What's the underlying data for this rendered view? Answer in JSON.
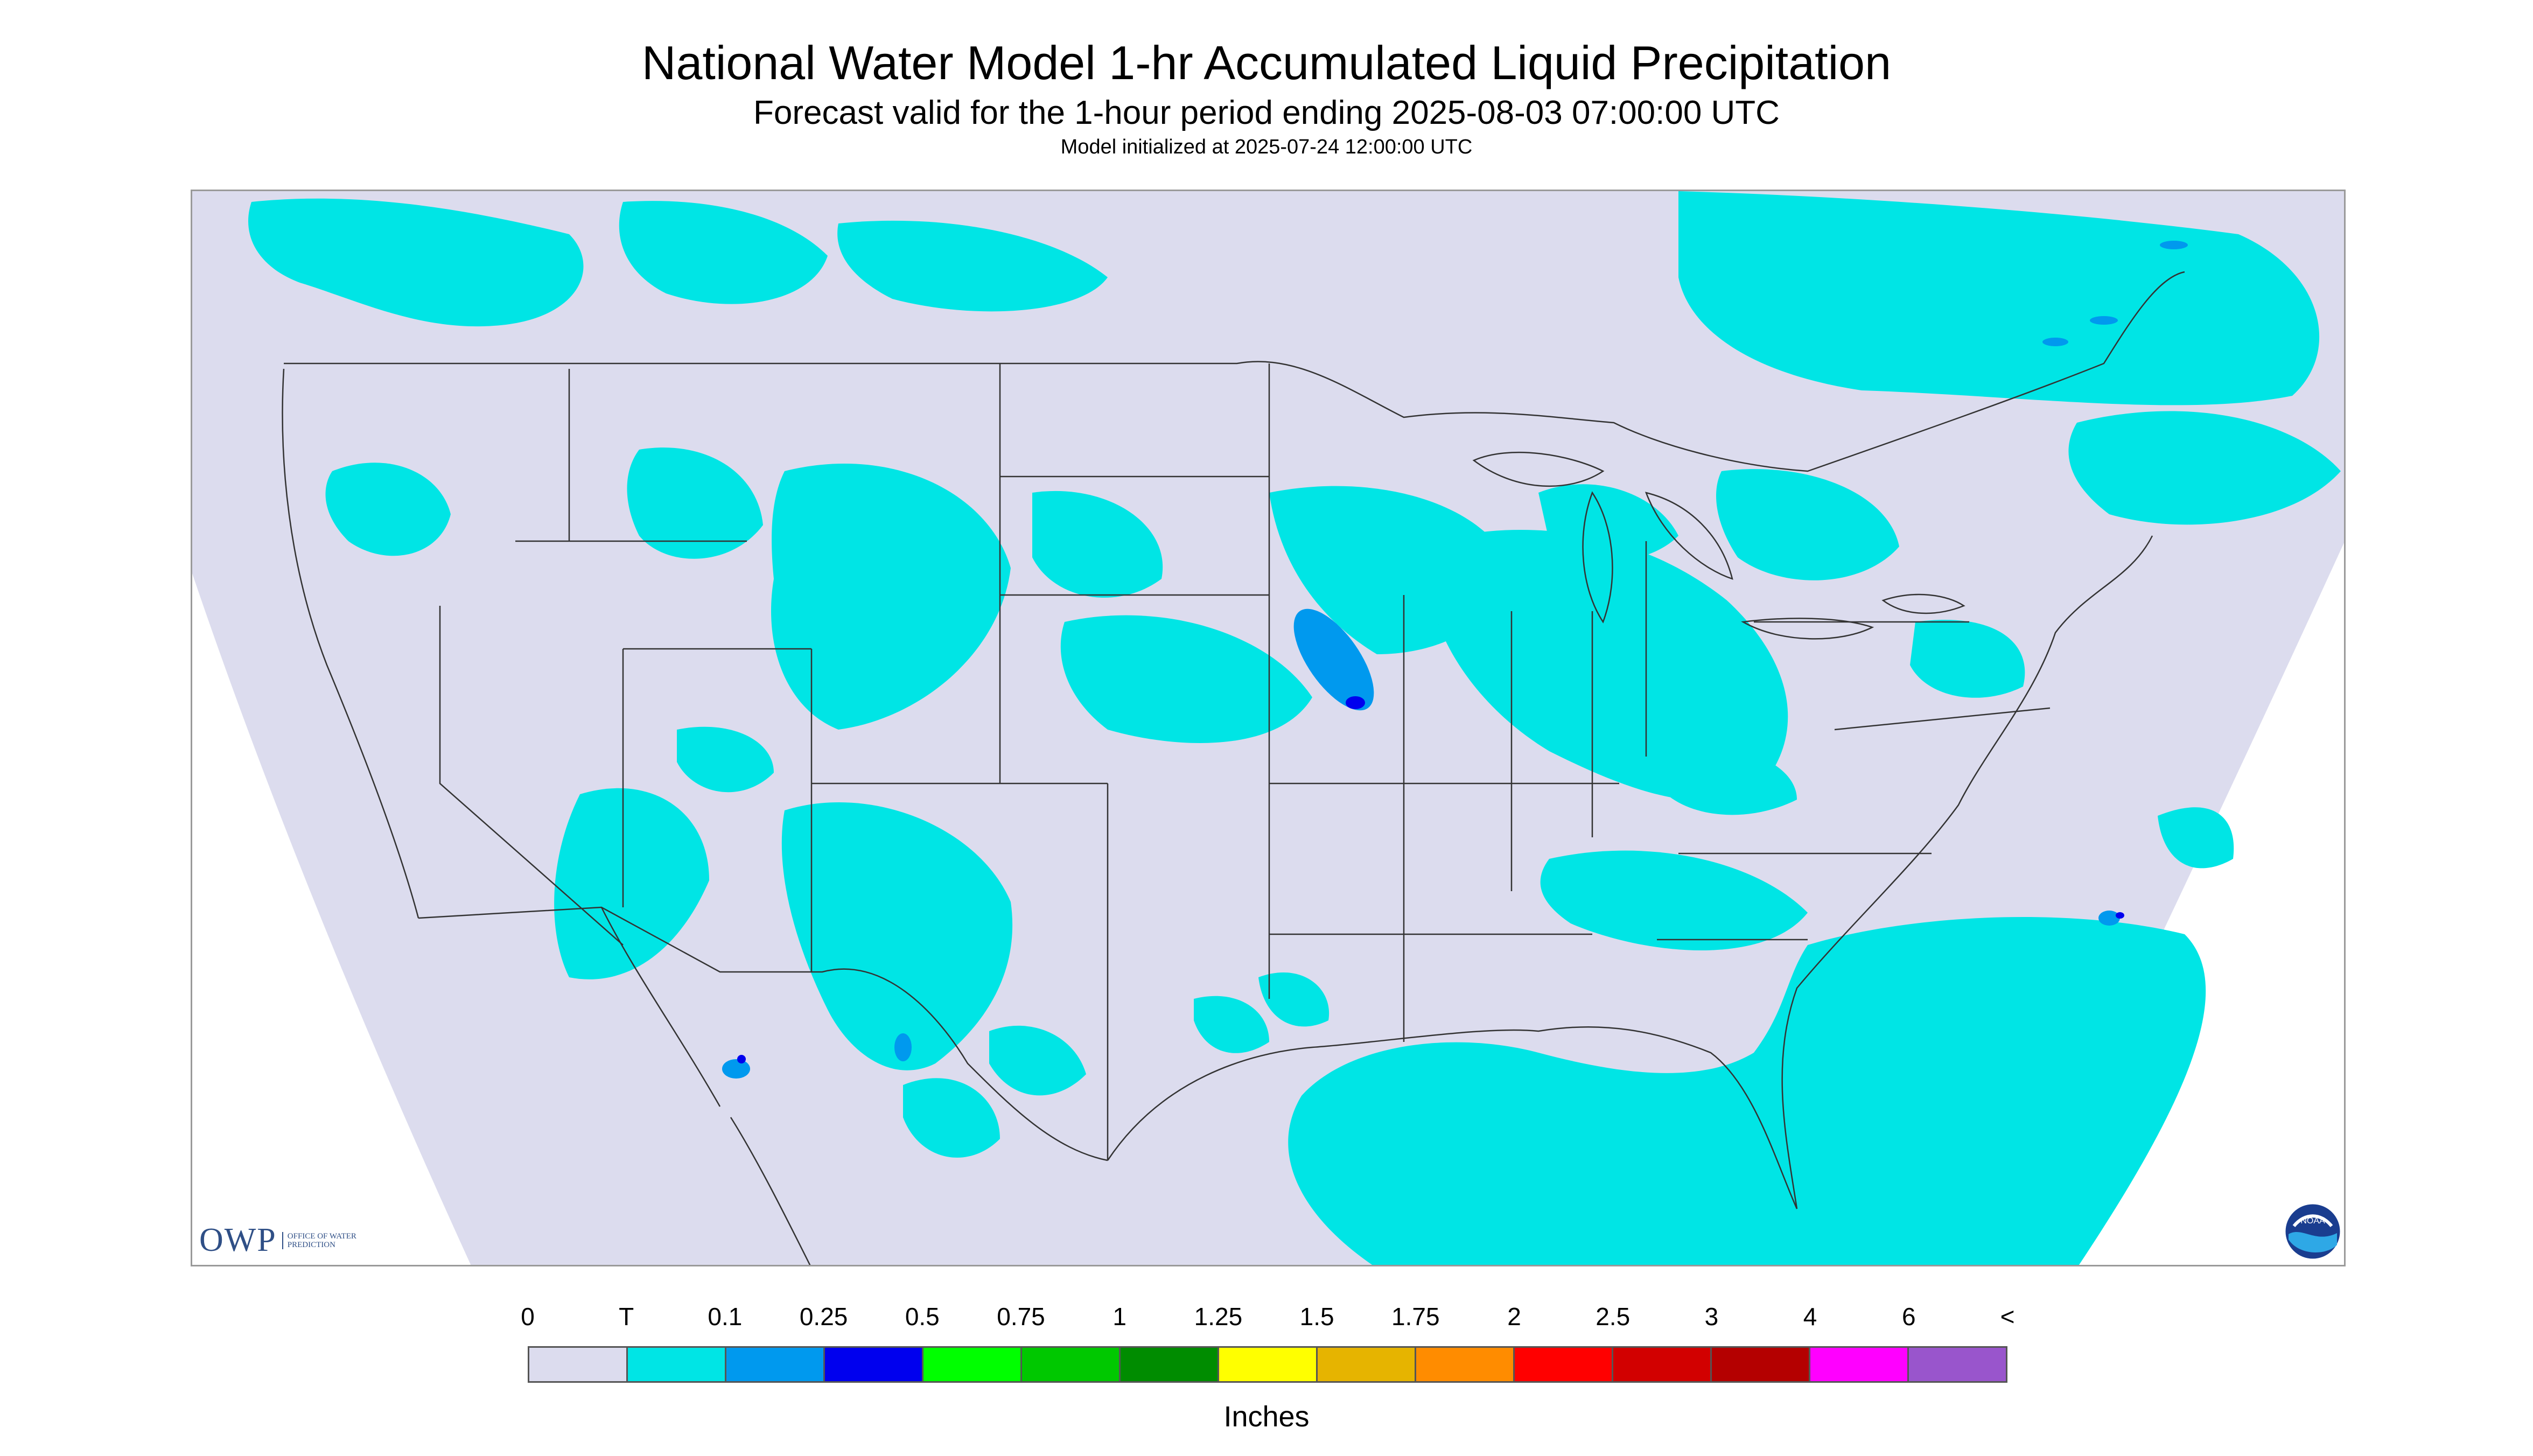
{
  "title": "National Water Model 1-hr Accumulated Liquid Precipitation",
  "subtitle": "Forecast valid for the 1-hour period ending 2025-08-03 07:00:00 UTC",
  "initialized": "Model initialized at 2025-07-24 12:00:00 UTC",
  "logos": {
    "owp_text": "OWP",
    "owp_sub": "OFFICE OF WATER PREDICTION",
    "noaa_text": "NOAA"
  },
  "legend": {
    "unit": "Inches",
    "labels": [
      "0",
      "T",
      "0.1",
      "0.25",
      "0.5",
      "0.75",
      "1",
      "1.25",
      "1.5",
      "1.75",
      "2",
      "2.5",
      "3",
      "4",
      "6",
      "<"
    ],
    "colors": [
      "#dcdcee",
      "#00e5e5",
      "#0099ee",
      "#0000ee",
      "#00ff00",
      "#00c800",
      "#008c00",
      "#ffff00",
      "#e6b400",
      "#ff8c00",
      "#ff0000",
      "#d20000",
      "#b40000",
      "#ff00ff",
      "#9955cc"
    ]
  },
  "map": {
    "background_color": "#dcdcee",
    "no_data_color": "#ffffff",
    "trace_color": "#00e5e5",
    "light_blue_color": "#0099ee",
    "dark_blue_color": "#0000ee",
    "boundary_color": "#333333"
  }
}
